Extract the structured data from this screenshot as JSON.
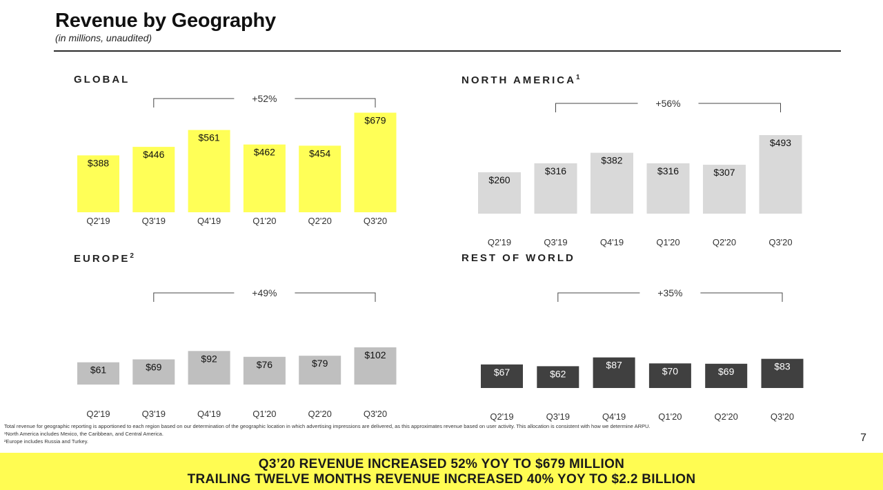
{
  "header": {
    "title": "Revenue by Geography",
    "subtitle": "(in millions, unaudited)"
  },
  "panels": {
    "global": {
      "title": "GLOBAL",
      "sup": ""
    },
    "north_america": {
      "title": "NORTH AMERICA",
      "sup": "1"
    },
    "europe": {
      "title": "EUROPE",
      "sup": "2"
    },
    "rest_of_world": {
      "title": "REST OF WORLD",
      "sup": ""
    }
  },
  "chart_data": [
    {
      "type": "bar",
      "title": "GLOBAL",
      "categories": [
        "Q2'19",
        "Q3'19",
        "Q4'19",
        "Q1'20",
        "Q2'20",
        "Q3'20"
      ],
      "values": [
        388,
        446,
        561,
        462,
        454,
        679
      ],
      "labels": [
        "$388",
        "$446",
        "$561",
        "$462",
        "$454",
        "$679"
      ],
      "growth_label": "+52%",
      "color": "#ffff57",
      "label_color": "#111111"
    },
    {
      "type": "bar",
      "title": "NORTH AMERICA",
      "categories": [
        "Q2'19",
        "Q3'19",
        "Q4'19",
        "Q1'20",
        "Q2'20",
        "Q3'20"
      ],
      "values": [
        260,
        316,
        382,
        316,
        307,
        493
      ],
      "labels": [
        "$260",
        "$316",
        "$382",
        "$316",
        "$307",
        "$493"
      ],
      "growth_label": "+56%",
      "color": "#d9d9d9",
      "label_color": "#111111"
    },
    {
      "type": "bar",
      "title": "EUROPE",
      "categories": [
        "Q2'19",
        "Q3'19",
        "Q4'19",
        "Q1'20",
        "Q2'20",
        "Q3'20"
      ],
      "values": [
        61,
        69,
        92,
        76,
        79,
        102
      ],
      "labels": [
        "$61",
        "$69",
        "$92",
        "$76",
        "$79",
        "$102"
      ],
      "growth_label": "+49%",
      "color": "#bfbfbf",
      "label_color": "#111111"
    },
    {
      "type": "bar",
      "title": "REST OF WORLD",
      "categories": [
        "Q2'19",
        "Q3'19",
        "Q4'19",
        "Q1'20",
        "Q2'20",
        "Q3'20"
      ],
      "values": [
        67,
        62,
        87,
        70,
        69,
        83
      ],
      "labels": [
        "$67",
        "$62",
        "$87",
        "$70",
        "$69",
        "$83"
      ],
      "growth_label": "+35%",
      "color": "#404040",
      "label_color": "#ffffff"
    }
  ],
  "footnotes": {
    "main": "Total revenue for geographic reporting is apportioned to each region based on our determination of the geographic location in which advertising impressions are delivered, as this approximates revenue based on user activity.  This allocation is consistent with how we determine ARPU.",
    "note1": "¹North America includes Mexico, the Caribbean, and Central America.",
    "note2": "²Europe includes Russia and Turkey."
  },
  "page_number": "7",
  "banner": {
    "line1": "Q3’20 REVENUE INCREASED 52% YOY TO $679 MILLION",
    "line2": "TRAILING TWELVE MONTHS REVENUE INCREASED 40% YOY TO $2.2 BILLION"
  }
}
